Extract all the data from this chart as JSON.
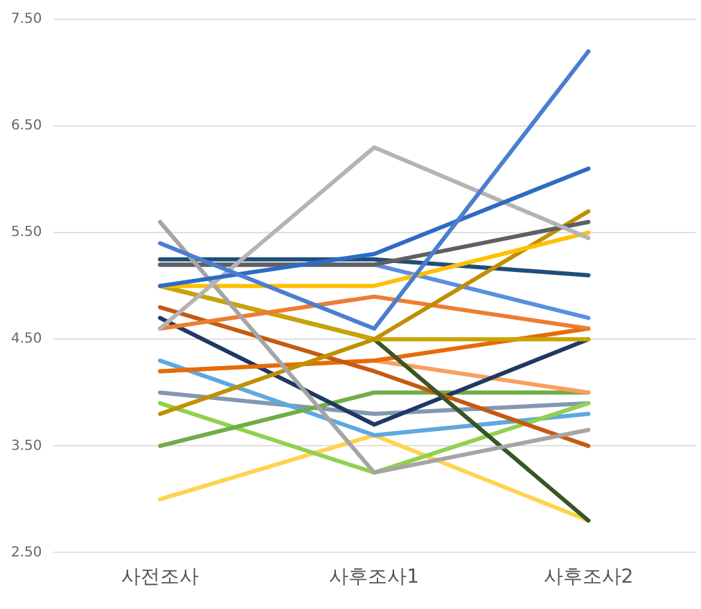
{
  "chart_data": {
    "type": "line",
    "categories": [
      "사전조사",
      "사후조사1",
      "사후조사2"
    ],
    "ylim": [
      2.5,
      7.5
    ],
    "yticks": [
      {
        "value": 2.5,
        "label": "2.50"
      },
      {
        "value": 3.5,
        "label": "3.50"
      },
      {
        "value": 4.5,
        "label": "4.50"
      },
      {
        "value": 5.5,
        "label": "5.50"
      },
      {
        "value": 6.5,
        "label": "6.50"
      },
      {
        "value": 7.5,
        "label": "7.50"
      }
    ],
    "grid": "y",
    "legend": false,
    "marker": "none",
    "line_style": "solid",
    "series": [
      {
        "color": "#4a7fd0",
        "values": [
          5.4,
          4.6,
          7.2
        ]
      },
      {
        "color": "#2e6bc4",
        "values": [
          5.0,
          5.3,
          6.1
        ]
      },
      {
        "color": "#b4b4b4",
        "values": [
          4.6,
          6.3,
          5.45
        ]
      },
      {
        "color": "#a5a5a5",
        "values": [
          5.6,
          3.25,
          3.65
        ]
      },
      {
        "color": "#606060",
        "values": [
          5.2,
          5.2,
          5.6
        ]
      },
      {
        "color": "#ffc000",
        "values": [
          5.0,
          5.0,
          5.5
        ]
      },
      {
        "color": "#bf9000",
        "values": [
          3.8,
          4.5,
          5.7
        ]
      },
      {
        "color": "#1f4e79",
        "values": [
          5.25,
          5.25,
          5.1
        ]
      },
      {
        "color": "#5b8fe0",
        "values": [
          5.2,
          5.2,
          4.7
        ]
      },
      {
        "color": "#ed7d31",
        "values": [
          4.6,
          4.9,
          4.6
        ]
      },
      {
        "color": "#c9a400",
        "values": [
          5.0,
          4.5,
          4.5
        ]
      },
      {
        "color": "#375623",
        "values": [
          5.0,
          4.5,
          2.8
        ]
      },
      {
        "color": "#c55a11",
        "values": [
          4.8,
          4.2,
          3.5
        ]
      },
      {
        "color": "#e46c0a",
        "values": [
          4.2,
          4.3,
          4.6
        ]
      },
      {
        "color": "#203864",
        "values": [
          4.7,
          3.7,
          4.5
        ]
      },
      {
        "color": "#f8a060",
        "values": [
          4.2,
          4.3,
          4.0
        ]
      },
      {
        "color": "#70ad47",
        "values": [
          3.5,
          4.0,
          4.0
        ]
      },
      {
        "color": "#92d050",
        "values": [
          3.9,
          3.25,
          3.9
        ]
      },
      {
        "color": "#5fa8e0",
        "values": [
          4.3,
          3.6,
          3.8
        ]
      },
      {
        "color": "#8497b0",
        "values": [
          4.0,
          3.8,
          3.9
        ]
      },
      {
        "color": "#ffd34d",
        "values": [
          3.0,
          3.6,
          2.8
        ]
      }
    ]
  }
}
